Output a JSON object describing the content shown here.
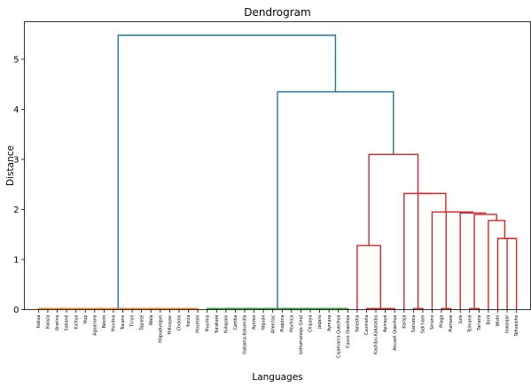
{
  "chart_data": {
    "type": "dendrogram",
    "title": "Dendrogram",
    "xlabel": "Languages",
    "ylabel": "Distance",
    "ylim": [
      0,
      5.75
    ],
    "yticks": [
      0,
      1,
      2,
      3,
      4,
      5
    ],
    "grid": false,
    "leaves": [
      "Kakua",
      "Kwaza",
      "Urarina",
      "Sabanê",
      "Kichua",
      "Hup",
      "Aguaruna",
      "Bésiro",
      "Movima",
      "Tucano",
      "Tiriyó",
      "Tapieté",
      "Wala",
      "Mapudungun",
      "Millcayac",
      "Chololo",
      "Yunza",
      "Mosetén",
      "Muyima",
      "Yurakaré",
      "Kulapalo",
      "Camba",
      "Itukama-Kokamilla",
      "Ayoreo",
      "Yaguan",
      "Allentiac",
      "Puquina",
      "Mochica",
      "Uchumataqu (Uru)",
      "Chipaya",
      "Jaqaru",
      "Aymara",
      "Cajamarca Quechua",
      "Cuzco Quechua",
      "Yanesha",
      "Cavineña",
      "Kashibo-Kakataibo",
      "Apinayé",
      "Ancash Quechua",
      "Karajá",
      "Sanuma",
      "Sek'nam",
      "Siriono",
      "Pilaga",
      "Pumave",
      "Lule",
      "Tsimané",
      "Tariana",
      "Bora",
      "Wichi",
      "Iowaiqar",
      "Tehuelche"
    ],
    "link_colors": {
      "c_orange": "#ff7f0e",
      "c_green": "#2ca02c",
      "c_red": "#d62728",
      "c_blue": "#1f77b4"
    },
    "links": [
      {
        "x": [
          0.5,
          0.5,
          1.5,
          1.5
        ],
        "y": [
          0,
          0.02,
          0.02,
          0
        ],
        "color": "c_orange"
      },
      {
        "x": [
          2.5,
          2.5,
          3.5,
          3.5
        ],
        "y": [
          0,
          0.02,
          0.02,
          0
        ],
        "color": "c_orange"
      },
      {
        "x": [
          4.5,
          4.5,
          5.5,
          5.5
        ],
        "y": [
          0,
          0.02,
          0.02,
          0
        ],
        "color": "c_orange"
      },
      {
        "x": [
          6.5,
          6.5,
          7.5,
          7.5
        ],
        "y": [
          0,
          0.02,
          0.02,
          0
        ],
        "color": "c_orange"
      },
      {
        "x": [
          8.5,
          8.5,
          9.5,
          9.5
        ],
        "y": [
          0,
          0.02,
          0.02,
          0
        ],
        "color": "c_orange"
      },
      {
        "x": [
          10.5,
          10.5,
          11.5,
          11.5
        ],
        "y": [
          0,
          0.02,
          0.02,
          0
        ],
        "color": "c_orange"
      },
      {
        "x": [
          12.5,
          12.5,
          13.5,
          13.5
        ],
        "y": [
          0,
          0.02,
          0.02,
          0
        ],
        "color": "c_orange"
      },
      {
        "x": [
          14.5,
          14.5,
          15.5,
          15.5
        ],
        "y": [
          0,
          0.02,
          0.02,
          0
        ],
        "color": "c_orange"
      },
      {
        "x": [
          16.5,
          16.5,
          17.5,
          17.5
        ],
        "y": [
          0,
          0.02,
          0.02,
          0
        ],
        "color": "c_orange"
      },
      {
        "x": [
          1.0,
          1.0,
          17.0,
          17.0
        ],
        "y": [
          0.02,
          0.02,
          0.02,
          0.02
        ],
        "color": "c_orange"
      },
      {
        "x": [
          18.5,
          18.5,
          19.5,
          19.5
        ],
        "y": [
          0,
          0.02,
          0.02,
          0
        ],
        "color": "c_green"
      },
      {
        "x": [
          20.5,
          20.5,
          21.5,
          21.5
        ],
        "y": [
          0,
          0.02,
          0.02,
          0
        ],
        "color": "c_green"
      },
      {
        "x": [
          22.5,
          22.5,
          23.5,
          23.5
        ],
        "y": [
          0,
          0.02,
          0.02,
          0
        ],
        "color": "c_green"
      },
      {
        "x": [
          24.5,
          24.5,
          25.5,
          25.5
        ],
        "y": [
          0,
          0.02,
          0.02,
          0
        ],
        "color": "c_green"
      },
      {
        "x": [
          26.5,
          26.5,
          27.5,
          27.5
        ],
        "y": [
          0,
          0.02,
          0.02,
          0
        ],
        "color": "c_green"
      },
      {
        "x": [
          28.5,
          28.5,
          29.5,
          29.5
        ],
        "y": [
          0,
          0.02,
          0.02,
          0
        ],
        "color": "c_green"
      },
      {
        "x": [
          30.5,
          30.5,
          31.5,
          31.5
        ],
        "y": [
          0,
          0.02,
          0.02,
          0
        ],
        "color": "c_green"
      },
      {
        "x": [
          32.5,
          32.5,
          33.5,
          33.5
        ],
        "y": [
          0,
          0.02,
          0.02,
          0
        ],
        "color": "c_green"
      },
      {
        "x": [
          19.0,
          19.0,
          33.0,
          33.0
        ],
        "y": [
          0.02,
          0.02,
          0.02,
          0.02
        ],
        "color": "c_green"
      },
      {
        "x": [
          35.5,
          35.5,
          36.5,
          36.5
        ],
        "y": [
          0,
          0.02,
          0.02,
          0
        ],
        "color": "c_red"
      },
      {
        "x": [
          37.5,
          37.5,
          38.5,
          38.5
        ],
        "y": [
          0,
          0.02,
          0.02,
          0
        ],
        "color": "c_red"
      },
      {
        "x": [
          36.0,
          36.0,
          38.0,
          38.0
        ],
        "y": [
          0.02,
          0.02,
          0.02,
          0.02
        ],
        "color": "c_red"
      },
      {
        "x": [
          34.5,
          34.5,
          37.0,
          37.0
        ],
        "y": [
          0,
          1.28,
          1.28,
          0.02
        ],
        "color": "c_red"
      },
      {
        "x": [
          40.5,
          40.5,
          41.5,
          41.5
        ],
        "y": [
          0,
          0.02,
          0.02,
          0
        ],
        "color": "c_red"
      },
      {
        "x": [
          43.5,
          43.5,
          44.5,
          44.5
        ],
        "y": [
          0,
          0.02,
          0.02,
          0
        ],
        "color": "c_red"
      },
      {
        "x": [
          46.5,
          46.5,
          47.5,
          47.5
        ],
        "y": [
          0,
          0.02,
          0.02,
          0
        ],
        "color": "c_red"
      },
      {
        "x": [
          50.5,
          50.5,
          51.5,
          51.5
        ],
        "y": [
          0,
          1.42,
          1.42,
          0
        ],
        "color": "c_red"
      },
      {
        "x": [
          49.5,
          49.5,
          51.0,
          51.0
        ],
        "y": [
          0,
          1.42,
          1.42,
          1.42
        ],
        "color": "c_red"
      },
      {
        "x": [
          48.5,
          48.5,
          50.25,
          50.25
        ],
        "y": [
          0,
          1.78,
          1.78,
          1.42
        ],
        "color": "c_red"
      },
      {
        "x": [
          47.0,
          47.0,
          49.375,
          49.375
        ],
        "y": [
          0.02,
          1.9,
          1.9,
          1.78
        ],
        "color": "c_red"
      },
      {
        "x": [
          45.5,
          45.5,
          48.1875,
          48.1875
        ],
        "y": [
          0,
          1.93,
          1.93,
          1.9
        ],
        "color": "c_red"
      },
      {
        "x": [
          44.0,
          44.0,
          46.84375,
          46.84375
        ],
        "y": [
          0.02,
          1.95,
          1.95,
          1.93
        ],
        "color": "c_red"
      },
      {
        "x": [
          42.5,
          42.5,
          45.421875,
          45.421875
        ],
        "y": [
          0,
          1.95,
          1.95,
          1.95
        ],
        "color": "c_red"
      },
      {
        "x": [
          41.0,
          41.0,
          43.9609375,
          43.9609375
        ],
        "y": [
          0.02,
          2.32,
          2.32,
          1.95
        ],
        "color": "c_red"
      },
      {
        "x": [
          39.5,
          39.5,
          42.48046875,
          42.48046875
        ],
        "y": [
          0,
          2.32,
          2.32,
          2.32
        ],
        "color": "c_red"
      },
      {
        "x": [
          35.75,
          35.75,
          40.990234375,
          40.990234375
        ],
        "y": [
          1.28,
          3.1,
          3.1,
          2.32
        ],
        "color": "c_red"
      },
      {
        "x": [
          26.0,
          26.0,
          38.3701171875,
          38.3701171875
        ],
        "y": [
          0.02,
          4.35,
          4.35,
          3.1
        ],
        "color": "c_blue"
      },
      {
        "x": [
          9.0,
          9.0,
          32.18505859375,
          32.18505859375
        ],
        "y": [
          0.02,
          5.48,
          5.48,
          4.35
        ],
        "color": "c_blue"
      }
    ]
  }
}
